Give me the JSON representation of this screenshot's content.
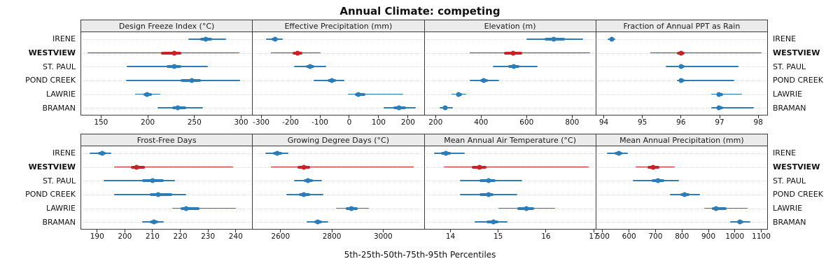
{
  "title": "Annual Climate: competing",
  "footer": "5th-25th-50th-75th-95th Percentiles",
  "highlight_station": "WESTVIEW",
  "colors": {
    "series": "#2c7cb8",
    "highlight": "#cb2227",
    "strip_bg": "#ebebeb",
    "panel_border": "#3c3c3c"
  },
  "chart_data": {
    "type": "interval-dotplot",
    "layout": {
      "nrow": 2,
      "ncol": 4,
      "legend_position": "none",
      "grid": "dotted-horizontal"
    },
    "percentiles": [
      5,
      25,
      50,
      75,
      95
    ],
    "rows": [
      "IRENE",
      "WESTVIEW",
      "ST. PAUL",
      "POND CREEK",
      "LAWRIE",
      "BRAMAN"
    ],
    "panels": [
      {
        "title": "Design Freeze Index (°C)",
        "xlim": [
          128,
          312
        ],
        "ticks": [
          150,
          200,
          250,
          300
        ],
        "values": [
          [
            243,
            256,
            262,
            269,
            284
          ],
          [
            135,
            214,
            228,
            236,
            298
          ],
          [
            177,
            220,
            228,
            236,
            264
          ],
          [
            176,
            235,
            247,
            257,
            299
          ],
          [
            186,
            195,
            199,
            204,
            213
          ],
          [
            210,
            226,
            232,
            241,
            259
          ]
        ]
      },
      {
        "title": "Effective Precipitation (mm)",
        "xlim": [
          -330,
          255
        ],
        "ticks": [
          -300,
          -200,
          -100,
          0,
          100,
          200
        ],
        "values": [
          [
            -285,
            -265,
            -255,
            -245,
            -228
          ],
          [
            -268,
            -195,
            -178,
            -160,
            -98
          ],
          [
            -190,
            -148,
            -135,
            -120,
            -78
          ],
          [
            -122,
            -75,
            -60,
            -45,
            -18
          ],
          [
            -5,
            18,
            30,
            55,
            185
          ],
          [
            118,
            152,
            170,
            195,
            228
          ]
        ]
      },
      {
        "title": "Elevation (m)",
        "xlim": [
          150,
          905
        ],
        "ticks": [
          200,
          400,
          600,
          800
        ],
        "values": [
          [
            600,
            680,
            720,
            770,
            850
          ],
          [
            350,
            500,
            540,
            580,
            880
          ],
          [
            450,
            520,
            545,
            570,
            650
          ],
          [
            350,
            395,
            410,
            430,
            480
          ],
          [
            270,
            290,
            300,
            315,
            335
          ],
          [
            215,
            230,
            240,
            250,
            275
          ]
        ]
      },
      {
        "title": "Fraction of Annual PPT as Rain",
        "xlim": [
          93.8,
          98.25
        ],
        "ticks": [
          94,
          95,
          96,
          97,
          98
        ],
        "values": [
          [
            94.1,
            94.15,
            94.2,
            94.25,
            94.3
          ],
          [
            95.2,
            95.9,
            96.0,
            96.1,
            98.1
          ],
          [
            95.6,
            95.95,
            96.0,
            96.1,
            97.5
          ],
          [
            95.9,
            95.98,
            96.0,
            96.1,
            97.4
          ],
          [
            96.8,
            96.95,
            97.0,
            97.1,
            97.6
          ],
          [
            96.8,
            96.95,
            97.0,
            97.1,
            97.9
          ]
        ]
      },
      {
        "title": "Frost-Free Days",
        "xlim": [
          184,
          246
        ],
        "ticks": [
          190,
          200,
          210,
          220,
          230,
          240
        ],
        "values": [
          [
            187,
            190,
            191.5,
            193,
            195
          ],
          [
            196,
            202,
            204,
            207,
            239
          ],
          [
            192,
            206,
            210,
            214,
            218
          ],
          [
            196,
            209,
            212,
            217,
            222
          ],
          [
            217,
            220,
            222,
            227,
            240
          ],
          [
            206,
            209,
            210.5,
            212,
            214
          ]
        ]
      },
      {
        "title": "Growing Degree Days (°C)",
        "xlim": [
          2490,
          3160
        ],
        "ticks": [
          2600,
          2800,
          3000
        ],
        "values": [
          [
            2540,
            2570,
            2585,
            2605,
            2630
          ],
          [
            2560,
            2665,
            2690,
            2715,
            3120
          ],
          [
            2650,
            2690,
            2705,
            2725,
            2760
          ],
          [
            2620,
            2670,
            2690,
            2715,
            2765
          ],
          [
            2815,
            2855,
            2875,
            2900,
            2945
          ],
          [
            2700,
            2730,
            2745,
            2760,
            2785
          ]
        ]
      },
      {
        "title": "Mean Annual Air Temperature (°C)",
        "xlim": [
          13.45,
          17.05
        ],
        "ticks": [
          14,
          15,
          16,
          17
        ],
        "values": [
          [
            13.65,
            13.8,
            13.9,
            14.0,
            14.3
          ],
          [
            13.85,
            14.45,
            14.6,
            14.75,
            16.9
          ],
          [
            14.2,
            14.6,
            14.8,
            14.95,
            15.5
          ],
          [
            14.2,
            14.6,
            14.8,
            14.9,
            15.4
          ],
          [
            15.0,
            15.4,
            15.6,
            15.75,
            16.2
          ],
          [
            14.5,
            14.75,
            14.9,
            15.0,
            15.2
          ]
        ]
      },
      {
        "title": "Mean Annual Precipitation (mm)",
        "xlim": [
          475,
          1125
        ],
        "ticks": [
          500,
          600,
          700,
          800,
          900,
          1000,
          1100
        ],
        "values": [
          [
            515,
            545,
            560,
            575,
            595
          ],
          [
            625,
            670,
            690,
            715,
            775
          ],
          [
            615,
            685,
            710,
            735,
            790
          ],
          [
            755,
            795,
            810,
            830,
            870
          ],
          [
            885,
            915,
            930,
            970,
            1050
          ],
          [
            985,
            1010,
            1020,
            1035,
            1060
          ]
        ]
      }
    ]
  }
}
